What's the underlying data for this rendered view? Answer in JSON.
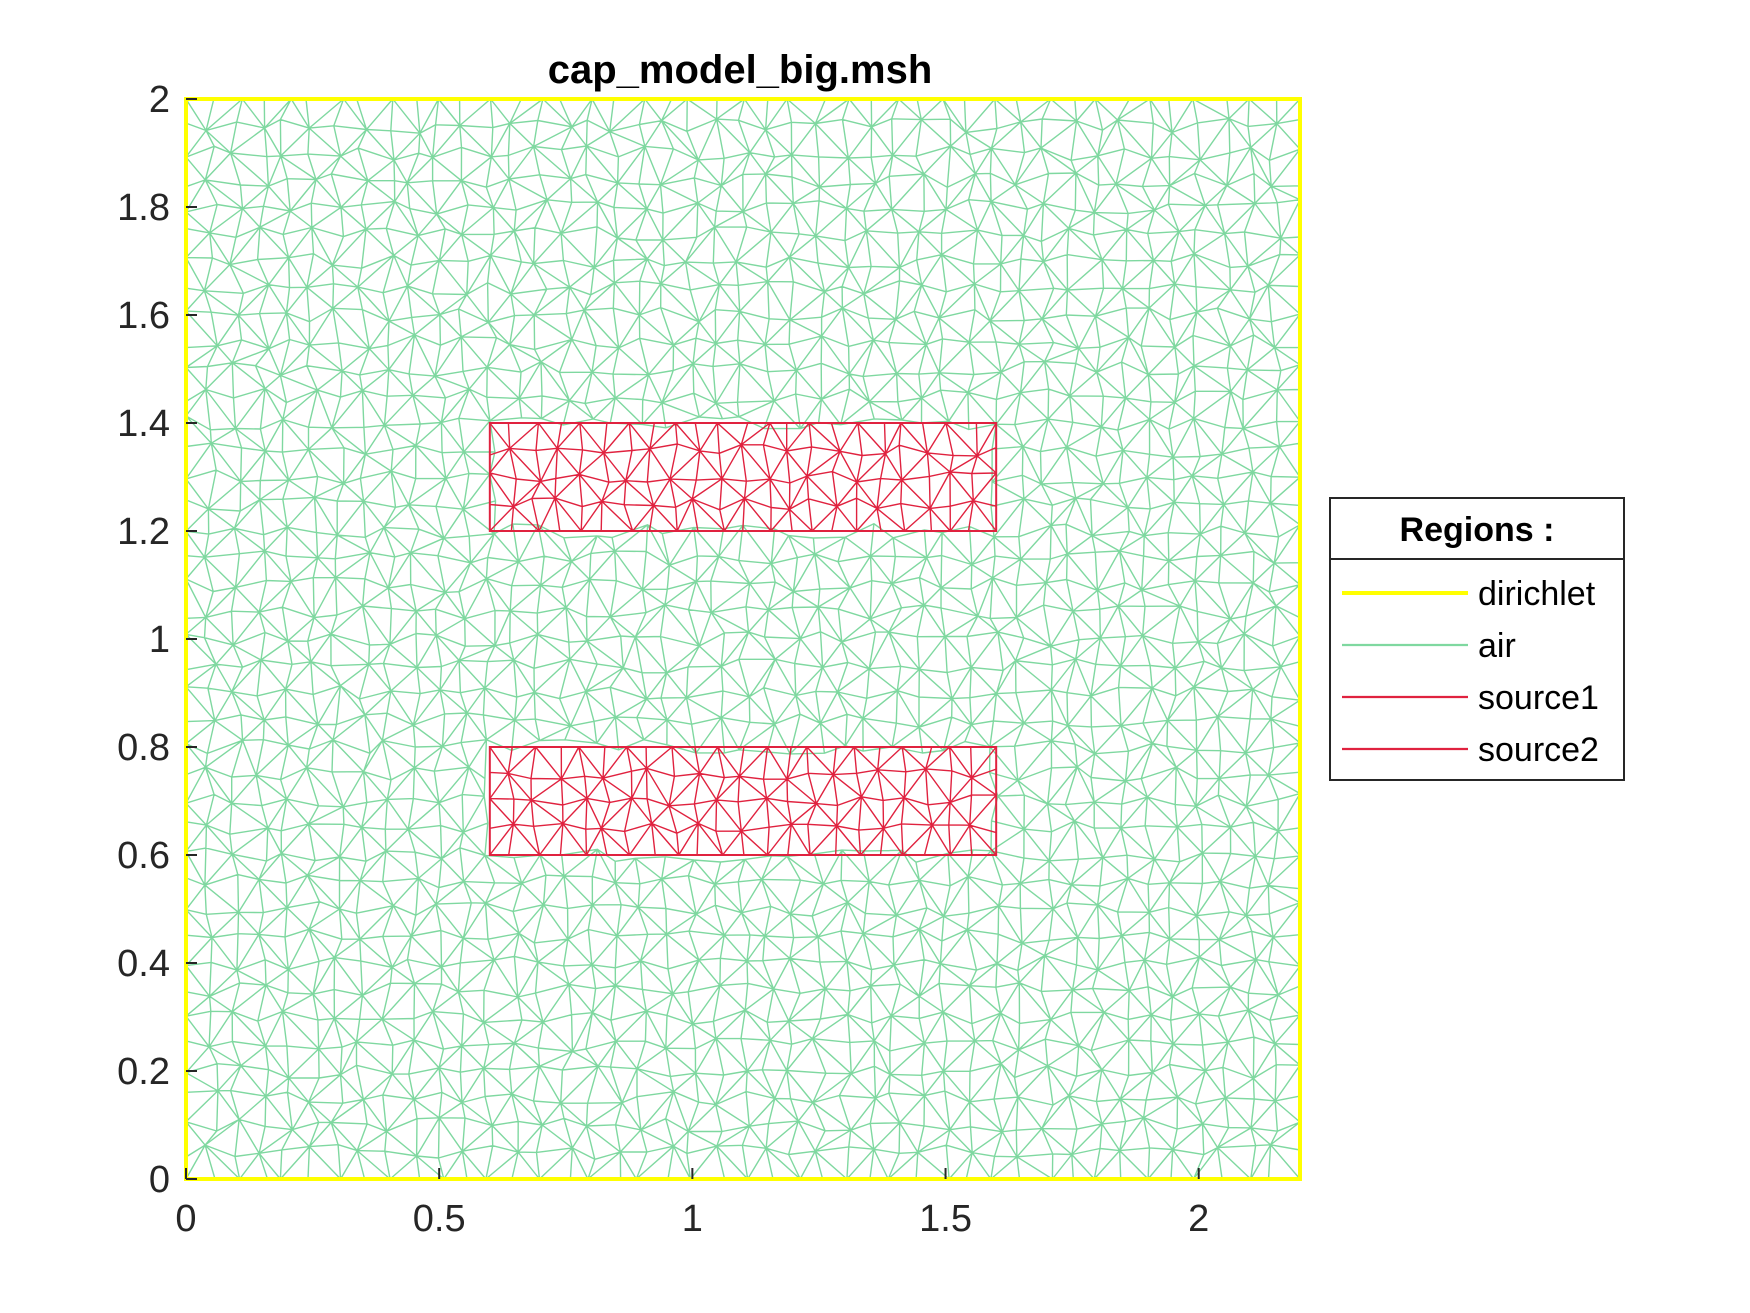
{
  "chart_data": {
    "type": "mesh",
    "title": "cap_model_big.msh",
    "xlim": [
      0,
      2.2
    ],
    "ylim": [
      0,
      2
    ],
    "x_ticks": [
      0,
      0.5,
      1,
      1.5,
      2
    ],
    "y_ticks": [
      0,
      0.2,
      0.4,
      0.6,
      0.8,
      1,
      1.2,
      1.4,
      1.6,
      1.8,
      2
    ],
    "x_tick_labels": [
      "0",
      "0.5",
      "1",
      "1.5",
      "2"
    ],
    "y_tick_labels": [
      "0",
      "0.2",
      "0.4",
      "0.6",
      "0.8",
      "1",
      "1.2",
      "1.4",
      "1.6",
      "1.8",
      "2"
    ],
    "legend": {
      "title": "Regions :",
      "placement": "right",
      "entries": [
        {
          "name": "dirichlet",
          "color": "#ffff00"
        },
        {
          "name": "air",
          "color": "#7fd8a0"
        },
        {
          "name": "source1",
          "color": "#e0223f"
        },
        {
          "name": "source2",
          "color": "#e0223f"
        }
      ]
    },
    "regions": [
      {
        "name": "dirichlet",
        "kind": "boundary",
        "x": [
          0,
          2.2
        ],
        "y": [
          0,
          2
        ],
        "color": "#ffff00"
      },
      {
        "name": "air",
        "kind": "domain",
        "x": [
          0,
          2.2
        ],
        "y": [
          0,
          2
        ],
        "color": "#7fd8a0"
      },
      {
        "name": "source1",
        "kind": "domain",
        "x": [
          0.6,
          1.6
        ],
        "y": [
          1.2,
          1.4
        ],
        "color": "#e0223f"
      },
      {
        "name": "source2",
        "kind": "domain",
        "x": [
          0.6,
          1.6
        ],
        "y": [
          0.6,
          0.8
        ],
        "color": "#e0223f"
      }
    ]
  }
}
